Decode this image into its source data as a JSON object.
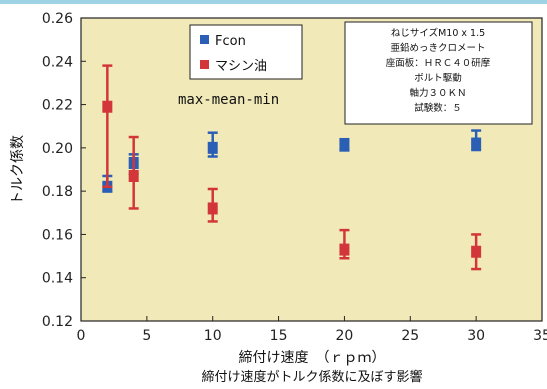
{
  "chart_data": {
    "type": "scatter",
    "title": "",
    "caption": "締付け速度がトルク係数に及ぼす影響",
    "xlabel": "締付け速度　（ｒｐｍ）",
    "ylabel": "トルク係数",
    "xlim": [
      0,
      35
    ],
    "ylim": [
      0.12,
      0.26
    ],
    "xticks": [
      "0",
      "5",
      "10",
      "15",
      "20",
      "25",
      "30",
      "35"
    ],
    "yticks": [
      "0.12",
      "0.14",
      "0.16",
      "0.18",
      "0.20",
      "0.22",
      "0.24",
      "0.26"
    ],
    "grid": false,
    "legend_position": "top-left",
    "annotation": "max-mean-min",
    "conditions": [
      "ねじサイズM10 x 1.5",
      "亜鉛めっきクロメート",
      "座面板：ＨＲＣ４０研摩",
      "ボルト駆動",
      "軸力３０ＫＮ",
      "試験数：５"
    ],
    "series": [
      {
        "name": "Fcon",
        "color": "#2a5fb5",
        "marker": "square",
        "x": [
          2,
          4,
          10,
          20,
          30
        ],
        "mean": [
          0.182,
          0.193,
          0.2,
          0.201,
          0.202
        ],
        "max": [
          0.187,
          0.197,
          0.207,
          0.204,
          0.208
        ],
        "min": [
          0.18,
          0.188,
          0.196,
          0.199,
          0.199
        ]
      },
      {
        "name": "マシン油",
        "color": "#d2363a",
        "marker": "square",
        "x": [
          2,
          4,
          10,
          20,
          30
        ],
        "mean": [
          0.219,
          0.187,
          0.172,
          0.153,
          0.152
        ],
        "max": [
          0.238,
          0.205,
          0.181,
          0.162,
          0.16
        ],
        "min": [
          0.182,
          0.172,
          0.166,
          0.149,
          0.144
        ]
      }
    ]
  },
  "colors": {
    "plot_background": "#f1eab8",
    "page_background": "#ffffff",
    "top_bar": "#9ed3e6",
    "box_border": "#222222"
  }
}
